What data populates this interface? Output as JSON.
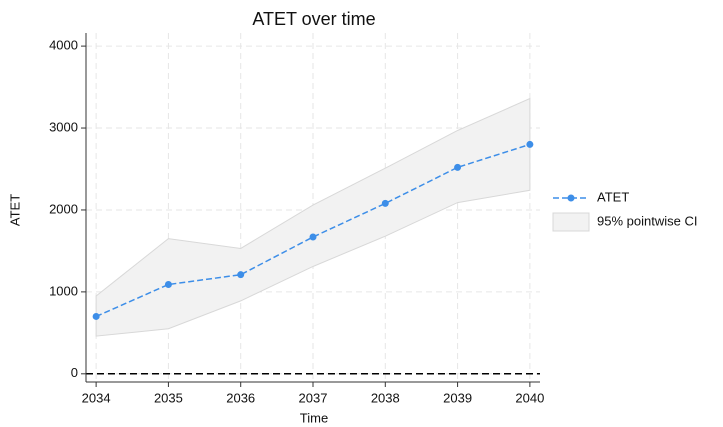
{
  "chart_data": {
    "type": "line",
    "title": "ATET over time",
    "x_label": "Time",
    "y_label": "ATET",
    "x": [
      2034,
      2035,
      2036,
      2037,
      2038,
      2039,
      2040
    ],
    "series": [
      {
        "name": "ATET",
        "color": "#3d8ee8",
        "values": [
          700,
          1090,
          1210,
          1670,
          2080,
          2520,
          2800
        ]
      }
    ],
    "band": {
      "name": "95% pointwise CI",
      "color": "#f2f2f2",
      "lower": [
        460,
        550,
        890,
        1310,
        1680,
        2090,
        2240
      ],
      "upper": [
        950,
        1650,
        1530,
        2060,
        2510,
        2970,
        3360
      ]
    },
    "reference_line": 0,
    "xlim": [
      2033.86,
      2040.14
    ],
    "ylim": [
      -100,
      4160
    ],
    "xticks": [
      2034,
      2035,
      2036,
      2037,
      2038,
      2039,
      2040
    ],
    "yticks": [
      0,
      1000,
      2000,
      3000,
      4000
    ],
    "grid": true,
    "legend": "right"
  }
}
